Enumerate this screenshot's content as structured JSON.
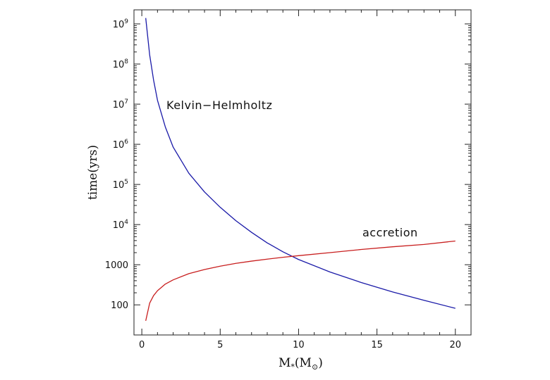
{
  "chart_data": {
    "type": "line",
    "title": "",
    "xlabel": "M",
    "xlabel_sub": "*",
    "xlabel_paren": "(M",
    "xlabel_paren_sub": "⊙",
    "xlabel_close": ")",
    "ylabel": "time(yrs)",
    "xlim": [
      -0.5,
      21
    ],
    "ylim_log10": [
      1.25,
      9.35
    ],
    "yscale": "log",
    "x_ticks": [
      0,
      5,
      10,
      15,
      20
    ],
    "x_tick_labels": [
      "0",
      "5",
      "10",
      "15",
      "20"
    ],
    "y_ticks": [
      {
        "value": 1000000000,
        "base": "10",
        "exp": "9"
      },
      {
        "value": 100000000,
        "base": "10",
        "exp": "8"
      },
      {
        "value": 10000000,
        "base": "10",
        "exp": "7"
      },
      {
        "value": 1000000,
        "base": "10",
        "exp": "6"
      },
      {
        "value": 100000,
        "base": "10",
        "exp": "5"
      },
      {
        "value": 10000,
        "base": "10",
        "exp": "4"
      },
      {
        "value": 1000,
        "base": "1000",
        "exp": ""
      },
      {
        "value": 100,
        "base": "100",
        "exp": ""
      }
    ],
    "series": [
      {
        "name": "Kelvin-Helmholtz",
        "label": "Kelvin−Helmholtz",
        "color": "#1a1aa8",
        "x": [
          0.25,
          0.5,
          0.75,
          1,
          1.5,
          2,
          3,
          4,
          5,
          6,
          7,
          8,
          9,
          10,
          12,
          14,
          16,
          18,
          20
        ],
        "y": [
          1400000000,
          170000000,
          40000000,
          12500000,
          2700000,
          850000,
          190000,
          65000,
          27000,
          12500,
          6400,
          3500,
          2100,
          1350,
          660,
          360,
          210,
          130,
          82
        ]
      },
      {
        "name": "accretion",
        "label": "accretion",
        "color": "#c81e1e",
        "x": [
          0.25,
          0.5,
          0.75,
          1,
          1.5,
          2,
          3,
          4,
          5,
          6,
          7,
          8,
          9,
          10,
          12,
          14,
          16,
          18,
          20
        ],
        "y": [
          40,
          110,
          170,
          225,
          330,
          420,
          600,
          760,
          920,
          1080,
          1230,
          1380,
          1530,
          1680,
          2000,
          2400,
          2800,
          3200,
          3900
        ]
      }
    ]
  }
}
